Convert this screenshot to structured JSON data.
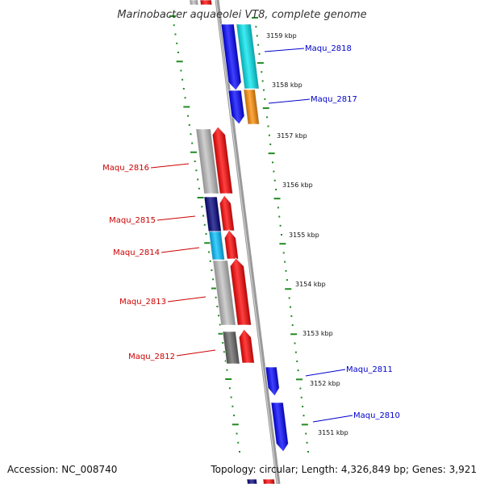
{
  "title": "Marinobacter aquaeolei VT8, complete genome",
  "footer": {
    "accession": "Accession: NC_008740",
    "topology": "Topology: circular; Length: 4,326,849 bp; Genes: 3,921"
  },
  "scale_labels": [
    "3159 kbp",
    "3158 kbp",
    "3157 kbp",
    "3156 kbp",
    "3155 kbp",
    "3154 kbp",
    "3153 kbp",
    "3152 kbp",
    "3151 kbp"
  ],
  "genes": {
    "forward": [
      "Maqu_2818",
      "Maqu_2817",
      "Maqu_2811",
      "Maqu_2810"
    ],
    "reverse": [
      "Maqu_2816",
      "Maqu_2815",
      "Maqu_2814",
      "Maqu_2813",
      "Maqu_2812"
    ]
  },
  "colors": {
    "backbone": "#888888",
    "forward_label": "#0000cc",
    "reverse_label": "#cc0000",
    "dots": "#228b22",
    "cds_forward": "#0000ff",
    "cds_reverse": "#ff0000",
    "cyan": "#00e5ee",
    "orange": "#ff8c00",
    "light_grey": "#bfbfbf",
    "navy": "#00007f",
    "sky": "#00bfff",
    "dark_grey": "#666666"
  }
}
